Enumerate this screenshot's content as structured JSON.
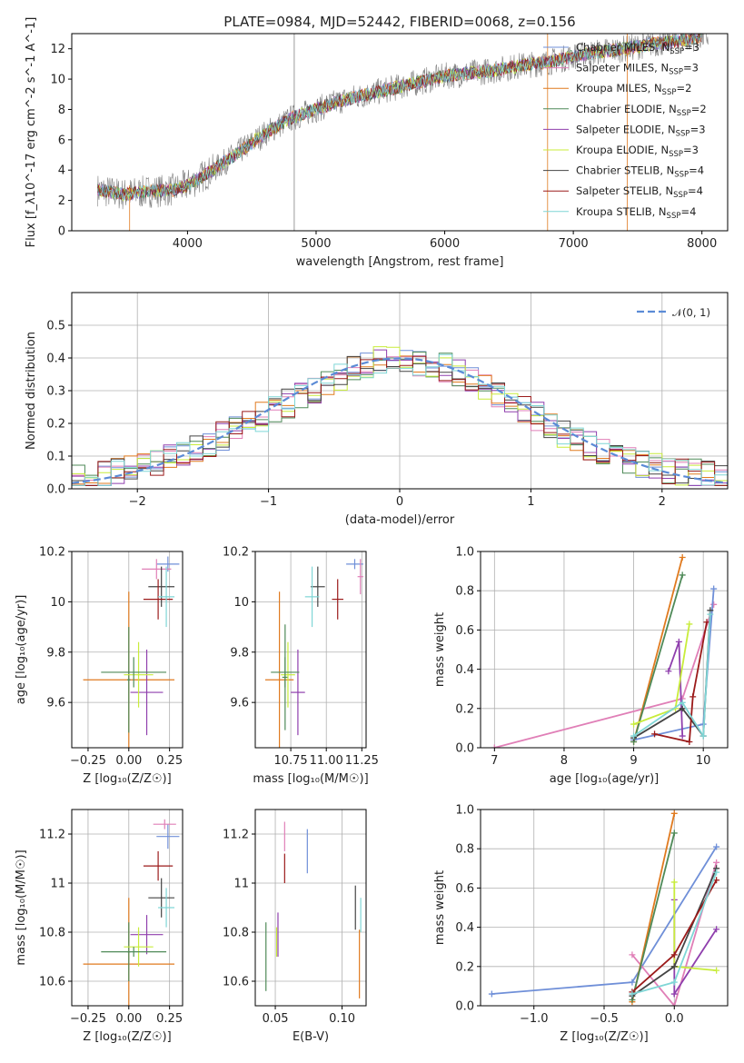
{
  "figure": {
    "title": "PLATE=0984, MJD=52442, FIBERID=0068, z=0.156"
  },
  "colors": {
    "Chabrier MILES": "#6f8fd8",
    "Salpeter MILES": "#e07fb7",
    "Kroupa MILES": "#e07a1f",
    "Chabrier ELODIE": "#4f8a58",
    "Salpeter ELODIE": "#8f3fad",
    "Kroupa ELODIE": "#c8ec3a",
    "Chabrier STELIB": "#444444",
    "Salpeter STELIB": "#9b1a1a",
    "Kroupa STELIB": "#7fd6d6",
    "data": "#808080",
    "normal": "#5b8bd6",
    "grid": "#b0b0b0"
  },
  "chart_data": [
    {
      "id": "spectrum",
      "type": "line",
      "xlabel": "wavelength [Angstrom, rest frame]",
      "ylabel": "Flux [f_λ10^-17 erg cm^-2 s^-1 A^-1]",
      "xlim": [
        3100,
        8200
      ],
      "ylim": [
        0,
        13
      ],
      "xticks": [
        4000,
        5000,
        6000,
        7000,
        8000
      ],
      "yticks": [
        0,
        2,
        4,
        6,
        8,
        10,
        12
      ],
      "grid": false,
      "legend_position": "right",
      "series": [
        {
          "name": "Chabrier MILES, N_SSP=3",
          "label_main": "Chabrier MILES, N",
          "sub": "SSP",
          "suffix": "=3",
          "key": "Chabrier MILES"
        },
        {
          "name": "Salpeter MILES, N_SSP=3",
          "label_main": "Salpeter MILES, N",
          "sub": "SSP",
          "suffix": "=3",
          "key": "Salpeter MILES"
        },
        {
          "name": "Kroupa MILES, N_SSP=2",
          "label_main": "Kroupa MILES, N",
          "sub": "SSP",
          "suffix": "=2",
          "key": "Kroupa MILES"
        },
        {
          "name": "Chabrier ELODIE, N_SSP=2",
          "label_main": "Chabrier ELODIE, N",
          "sub": "SSP",
          "suffix": "=2",
          "key": "Chabrier ELODIE"
        },
        {
          "name": "Salpeter ELODIE, N_SSP=3",
          "label_main": "Salpeter ELODIE, N",
          "sub": "SSP",
          "suffix": "=3",
          "key": "Salpeter ELODIE"
        },
        {
          "name": "Kroupa ELODIE, N_SSP=3",
          "label_main": "Kroupa ELODIE, N",
          "sub": "SSP",
          "suffix": "=3",
          "key": "Kroupa ELODIE"
        },
        {
          "name": "Chabrier STELIB, N_SSP=4",
          "label_main": "Chabrier STELIB, N",
          "sub": "SSP",
          "suffix": "=4",
          "key": "Chabrier STELIB"
        },
        {
          "name": "Salpeter STELIB, N_SSP=4",
          "label_main": "Salpeter STELIB, N",
          "sub": "SSP",
          "suffix": "=4",
          "key": "Salpeter STELIB"
        },
        {
          "name": "Kroupa STELIB, N_SSP=4",
          "label_main": "Kroupa STELIB, N",
          "sub": "SSP",
          "suffix": "=4",
          "key": "Kroupa STELIB"
        }
      ],
      "continuum": {
        "x": [
          3300,
          3500,
          3700,
          3900,
          4000,
          4200,
          4400,
          4600,
          4800,
          5000,
          5200,
          5400,
          5600,
          5800,
          6000,
          6200,
          6400,
          6600,
          6800,
          7000,
          7200,
          7400,
          7600,
          7800,
          8000
        ],
        "y": [
          2.7,
          2.4,
          2.6,
          2.7,
          3.0,
          4.0,
          5.2,
          6.4,
          7.4,
          8.0,
          8.6,
          9.0,
          9.4,
          9.8,
          10.2,
          10.4,
          10.6,
          10.9,
          11.1,
          11.5,
          11.8,
          12.0,
          12.3,
          12.5,
          12.8
        ]
      }
    },
    {
      "id": "residuals",
      "type": "histogram",
      "xlabel": "(data-model)/error",
      "ylabel": "Normed distribution",
      "xlim": [
        -2.5,
        2.5
      ],
      "ylim": [
        0,
        0.6
      ],
      "xticks": [
        -2,
        -1,
        0,
        1,
        2
      ],
      "yticks": [
        0.0,
        0.1,
        0.2,
        0.3,
        0.4,
        0.5
      ],
      "grid": true,
      "legend": [
        {
          "label": "𝒩(0, 1)",
          "style": "dashed"
        }
      ],
      "legend_position": "top-right",
      "bins": {
        "start": -2.5,
        "width": 0.1,
        "count": 50
      },
      "mean_profile": [
        0.03,
        0.03,
        0.04,
        0.05,
        0.06,
        0.07,
        0.08,
        0.095,
        0.11,
        0.125,
        0.14,
        0.16,
        0.18,
        0.2,
        0.22,
        0.24,
        0.26,
        0.28,
        0.3,
        0.32,
        0.34,
        0.36,
        0.38,
        0.39,
        0.4,
        0.4,
        0.39,
        0.38,
        0.37,
        0.35,
        0.33,
        0.31,
        0.29,
        0.27,
        0.24,
        0.22,
        0.19,
        0.17,
        0.15,
        0.13,
        0.11,
        0.1,
        0.09,
        0.08,
        0.07,
        0.06,
        0.05,
        0.05,
        0.04,
        0.03
      ]
    },
    {
      "id": "age_vs_Z",
      "type": "errorbar",
      "xlabel": "Z [log₁₀(Z/Z☉)]",
      "ylabel": "age  [log₁₀(age/yr)]",
      "xlim": [
        -0.35,
        0.33
      ],
      "ylim": [
        9.42,
        10.2
      ],
      "xticks": [
        -0.25,
        0.0,
        0.25
      ],
      "xticklabels": [
        "−0.25",
        "0.00",
        "0.25"
      ],
      "yticks": [
        9.6,
        9.8,
        10.0,
        10.2
      ],
      "grid": true,
      "points": [
        {
          "key": "Chabrier MILES",
          "x": 0.24,
          "xerr": 0.07,
          "y": 10.15,
          "yerr": 0.03
        },
        {
          "key": "Salpeter MILES",
          "x": 0.17,
          "xerr": 0.09,
          "y": 10.13,
          "yerr": 0.04
        },
        {
          "key": "Kroupa MILES",
          "x": 0.0,
          "xerr": 0.28,
          "y": 9.69,
          "yerr": 0.35
        },
        {
          "key": "Chabrier ELODIE",
          "x": 0.0,
          "xerr": 0.01,
          "y": 9.69,
          "yerr": 0.21
        },
        {
          "key": "Salpeter ELODIE",
          "x": 0.11,
          "xerr": 0.1,
          "y": 9.64,
          "yerr": 0.17
        },
        {
          "key": "Kroupa ELODIE",
          "x": 0.06,
          "xerr": 0.09,
          "y": 9.71,
          "yerr": 0.13
        },
        {
          "key": "Chabrier STELIB",
          "x": 0.2,
          "xerr": 0.08,
          "y": 10.06,
          "yerr": 0.08
        },
        {
          "key": "Salpeter STELIB",
          "x": 0.18,
          "xerr": 0.09,
          "y": 10.01,
          "yerr": 0.08
        },
        {
          "key": "Kroupa STELIB",
          "x": 0.23,
          "xerr": 0.05,
          "y": 10.02,
          "yerr": 0.12
        },
        {
          "key": "Chabrier ELODIE",
          "x": 0.03,
          "xerr": 0.2,
          "y": 9.72,
          "yerr": 0.06
        }
      ]
    },
    {
      "id": "age_vs_mass",
      "type": "errorbar",
      "xlabel": "mass [log₁₀(M/M☉)]",
      "ylabel": "",
      "xlim": [
        10.5,
        11.28
      ],
      "ylim": [
        9.42,
        10.2
      ],
      "xticks": [
        10.75,
        11.0,
        11.25
      ],
      "xticklabels": [
        "10.75",
        "11.00",
        "11.25"
      ],
      "yticks": [
        9.6,
        9.8,
        10.0,
        10.2
      ],
      "grid": true,
      "points": [
        {
          "key": "Chabrier MILES",
          "x": 11.2,
          "xerr": 0.06,
          "y": 10.15,
          "yerr": 0.02
        },
        {
          "key": "Salpeter MILES",
          "x": 11.24,
          "xerr": 0.02,
          "y": 10.1,
          "yerr": 0.07
        },
        {
          "key": "Kroupa MILES",
          "x": 10.67,
          "xerr": 0.1,
          "y": 9.69,
          "yerr": 0.35
        },
        {
          "key": "Chabrier ELODIE",
          "x": 10.71,
          "xerr": 0.02,
          "y": 9.7,
          "yerr": 0.21
        },
        {
          "key": "Salpeter ELODIE",
          "x": 10.8,
          "xerr": 0.05,
          "y": 9.64,
          "yerr": 0.17
        },
        {
          "key": "Kroupa ELODIE",
          "x": 10.73,
          "xerr": 0.05,
          "y": 9.71,
          "yerr": 0.13
        },
        {
          "key": "Chabrier STELIB",
          "x": 10.94,
          "xerr": 0.05,
          "y": 10.06,
          "yerr": 0.08
        },
        {
          "key": "Salpeter STELIB",
          "x": 11.08,
          "xerr": 0.04,
          "y": 10.01,
          "yerr": 0.08
        },
        {
          "key": "Kroupa STELIB",
          "x": 10.9,
          "xerr": 0.05,
          "y": 10.02,
          "yerr": 0.12
        },
        {
          "key": "Chabrier ELODIE",
          "x": 10.71,
          "xerr": 0.1,
          "y": 9.72,
          "yerr": 0.06
        }
      ]
    },
    {
      "id": "weight_vs_age",
      "type": "line",
      "xlabel": "age  [log₁₀(age/yr)]",
      "ylabel": "mass weight",
      "xlim": [
        6.8,
        10.35
      ],
      "ylim": [
        0,
        1.0
      ],
      "xticks": [
        7,
        8,
        9,
        10
      ],
      "yticks": [
        0.0,
        0.2,
        0.4,
        0.6,
        0.8,
        1.0
      ],
      "grid": true,
      "series": [
        {
          "key": "Salpeter MILES",
          "x": [
            7.0,
            9.7,
            10.15
          ],
          "y": [
            0.0,
            0.25,
            0.73
          ]
        },
        {
          "key": "Chabrier MILES",
          "x": [
            9.0,
            10.0,
            10.15
          ],
          "y": [
            0.04,
            0.12,
            0.81
          ]
        },
        {
          "key": "Kroupa MILES",
          "x": [
            9.0,
            9.7
          ],
          "y": [
            0.03,
            0.97
          ]
        },
        {
          "key": "Chabrier ELODIE",
          "x": [
            9.0,
            9.7
          ],
          "y": [
            0.03,
            0.88
          ]
        },
        {
          "key": "Salpeter ELODIE",
          "x": [
            9.5,
            9.65,
            9.7
          ],
          "y": [
            0.39,
            0.54,
            0.06
          ]
        },
        {
          "key": "Kroupa ELODIE",
          "x": [
            9.0,
            9.6,
            9.8
          ],
          "y": [
            0.12,
            0.2,
            0.63
          ]
        },
        {
          "key": "Chabrier STELIB",
          "x": [
            9.0,
            9.7,
            10.0,
            10.1
          ],
          "y": [
            0.05,
            0.2,
            0.06,
            0.7
          ]
        },
        {
          "key": "Salpeter STELIB",
          "x": [
            9.3,
            9.8,
            9.85,
            10.05
          ],
          "y": [
            0.07,
            0.03,
            0.26,
            0.64
          ]
        },
        {
          "key": "Kroupa STELIB",
          "x": [
            9.0,
            9.7,
            10.0,
            10.1
          ],
          "y": [
            0.06,
            0.23,
            0.06,
            0.68
          ]
        }
      ]
    },
    {
      "id": "mass_vs_Z",
      "type": "errorbar",
      "xlabel": "Z [log₁₀(Z/Z☉)]",
      "ylabel": "mass [log₁₀(M/M☉)]",
      "xlim": [
        -0.35,
        0.33
      ],
      "ylim": [
        10.5,
        11.3
      ],
      "xticks": [
        -0.25,
        0.0,
        0.25
      ],
      "xticklabels": [
        "−0.25",
        "0.00",
        "0.25"
      ],
      "yticks": [
        10.6,
        10.8,
        11.0,
        11.2
      ],
      "grid": true,
      "points": [
        {
          "key": "Chabrier MILES",
          "x": 0.24,
          "xerr": 0.07,
          "y": 11.19,
          "yerr": 0.05
        },
        {
          "key": "Salpeter MILES",
          "x": 0.22,
          "xerr": 0.07,
          "y": 11.24,
          "yerr": 0.02
        },
        {
          "key": "Kroupa MILES",
          "x": 0.0,
          "xerr": 0.28,
          "y": 10.67,
          "yerr": 0.27
        },
        {
          "key": "Chabrier ELODIE",
          "x": 0.0,
          "xerr": 0.01,
          "y": 10.72,
          "yerr": 0.12
        },
        {
          "key": "Salpeter ELODIE",
          "x": 0.11,
          "xerr": 0.1,
          "y": 10.79,
          "yerr": 0.08
        },
        {
          "key": "Kroupa ELODIE",
          "x": 0.06,
          "xerr": 0.09,
          "y": 10.74,
          "yerr": 0.08
        },
        {
          "key": "Chabrier STELIB",
          "x": 0.2,
          "xerr": 0.08,
          "y": 10.94,
          "yerr": 0.08
        },
        {
          "key": "Salpeter STELIB",
          "x": 0.18,
          "xerr": 0.09,
          "y": 11.07,
          "yerr": 0.06
        },
        {
          "key": "Kroupa STELIB",
          "x": 0.23,
          "xerr": 0.05,
          "y": 10.9,
          "yerr": 0.08
        },
        {
          "key": "Chabrier ELODIE",
          "x": 0.03,
          "xerr": 0.2,
          "y": 10.72,
          "yerr": 0.02
        }
      ]
    },
    {
      "id": "mass_vs_ebv",
      "type": "errorbar",
      "xlabel": "E(B-V)",
      "ylabel": "",
      "xlim": [
        0.035,
        0.118
      ],
      "ylim": [
        10.5,
        11.3
      ],
      "xticks": [
        0.05,
        0.1
      ],
      "xticklabels": [
        "0.05",
        "0.10"
      ],
      "yticks": [
        10.6,
        10.8,
        11.0,
        11.2
      ],
      "grid": true,
      "points": [
        {
          "key": "Chabrier MILES",
          "x": 0.074,
          "y": 11.13,
          "yerr": 0.09
        },
        {
          "key": "Salpeter MILES",
          "x": 0.057,
          "y": 11.19,
          "yerr": 0.06
        },
        {
          "key": "Kroupa MILES",
          "x": 0.113,
          "y": 10.67,
          "yerr": 0.14
        },
        {
          "key": "Chabrier ELODIE",
          "x": 0.043,
          "y": 10.7,
          "yerr": 0.14
        },
        {
          "key": "Salpeter ELODIE",
          "x": 0.052,
          "y": 10.79,
          "yerr": 0.09
        },
        {
          "key": "Kroupa ELODIE",
          "x": 0.051,
          "y": 10.76,
          "yerr": 0.06
        },
        {
          "key": "Chabrier STELIB",
          "x": 0.11,
          "y": 10.9,
          "yerr": 0.09
        },
        {
          "key": "Salpeter STELIB",
          "x": 0.057,
          "y": 11.06,
          "yerr": 0.06
        },
        {
          "key": "Kroupa STELIB",
          "x": 0.114,
          "y": 10.87,
          "yerr": 0.07
        }
      ]
    },
    {
      "id": "weight_vs_Z",
      "type": "line",
      "xlabel": "Z [log₁₀(Z/Z☉)]",
      "ylabel": "mass weight",
      "xlim": [
        -1.38,
        0.38
      ],
      "ylim": [
        0,
        1.0
      ],
      "xticks": [
        -1.0,
        -0.5,
        0.0
      ],
      "xticklabels": [
        "−1.0",
        "−0.5",
        "0.0"
      ],
      "yticks": [
        0.0,
        0.2,
        0.4,
        0.6,
        0.8,
        1.0
      ],
      "grid": true,
      "series": [
        {
          "key": "Chabrier MILES",
          "x": [
            -1.3,
            -0.3,
            0.3
          ],
          "y": [
            0.06,
            0.12,
            0.81
          ]
        },
        {
          "key": "Salpeter MILES",
          "x": [
            -0.3,
            0.0,
            0.3
          ],
          "y": [
            0.26,
            0.0,
            0.73
          ]
        },
        {
          "key": "Kroupa MILES",
          "x": [
            -0.3,
            0.0
          ],
          "y": [
            0.02,
            0.98
          ]
        },
        {
          "key": "Chabrier ELODIE",
          "x": [
            -0.3,
            0.0
          ],
          "y": [
            0.03,
            0.88
          ]
        },
        {
          "key": "Salpeter ELODIE",
          "x": [
            0.0,
            0.0,
            0.3
          ],
          "y": [
            0.54,
            0.06,
            0.39
          ]
        },
        {
          "key": "Kroupa ELODIE",
          "x": [
            0.0,
            0.0,
            0.3
          ],
          "y": [
            0.63,
            0.2,
            0.18
          ]
        },
        {
          "key": "Chabrier STELIB",
          "x": [
            -0.3,
            0.0,
            0.3
          ],
          "y": [
            0.05,
            0.2,
            0.7
          ]
        },
        {
          "key": "Salpeter STELIB",
          "x": [
            -0.3,
            0.0,
            0.3
          ],
          "y": [
            0.07,
            0.26,
            0.64
          ]
        },
        {
          "key": "Kroupa STELIB",
          "x": [
            -0.3,
            0.0,
            0.3
          ],
          "y": [
            0.06,
            0.12,
            0.68
          ]
        }
      ]
    }
  ]
}
